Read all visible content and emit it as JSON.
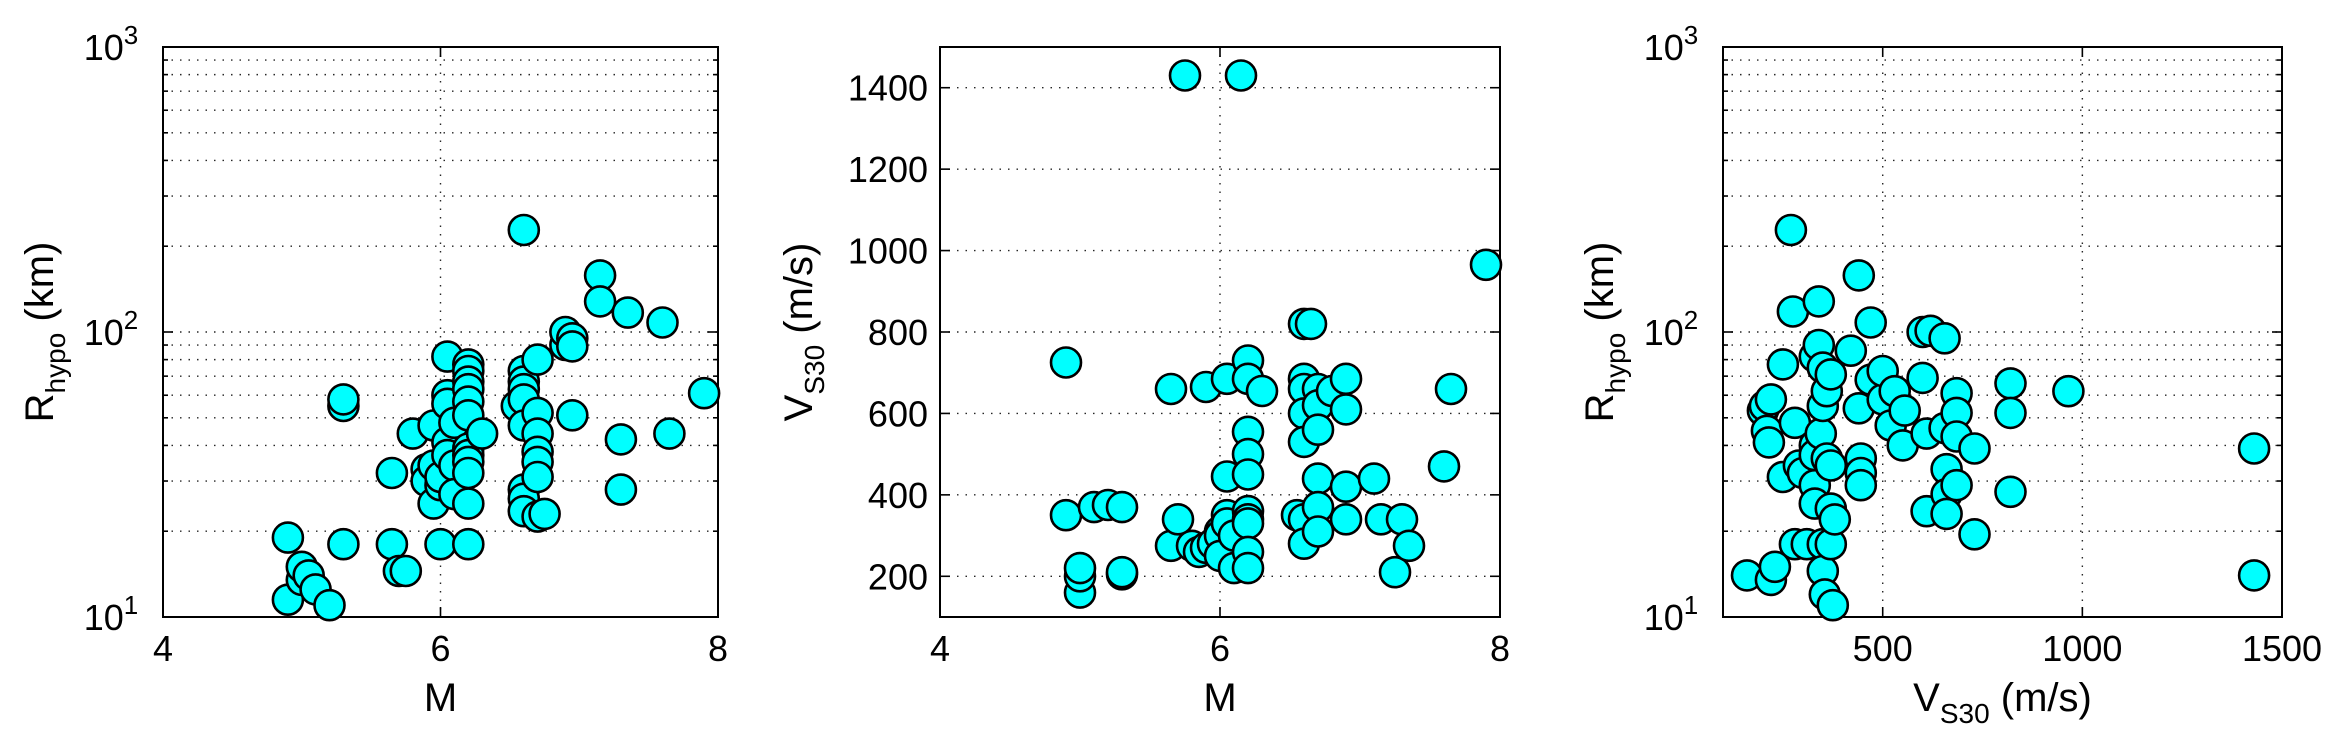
{
  "chart_data": [
    {
      "type": "scatter",
      "xlabel": "M",
      "ylabel": {
        "main": "R",
        "sub": "hypo",
        "unit": " (km)"
      },
      "xlim": [
        4,
        8
      ],
      "ylim": [
        10,
        1000
      ],
      "yscale": "log",
      "grid": true,
      "xticks": [
        4,
        6,
        8
      ],
      "yticks": [
        {
          "base": "10",
          "exp": "1"
        },
        {
          "base": "10",
          "exp": "2"
        },
        {
          "base": "10",
          "exp": "3"
        }
      ],
      "marker_color": "#00FFFF",
      "points": [
        [
          4.9,
          11.5
        ],
        [
          4.9,
          19
        ],
        [
          5.0,
          13.5
        ],
        [
          5.0,
          15
        ],
        [
          5.05,
          14
        ],
        [
          5.1,
          12.5
        ],
        [
          5.2,
          11
        ],
        [
          5.3,
          18
        ],
        [
          5.3,
          55
        ],
        [
          5.3,
          58
        ],
        [
          5.65,
          32
        ],
        [
          5.65,
          18
        ],
        [
          5.7,
          14.5
        ],
        [
          5.75,
          14.5
        ],
        [
          5.8,
          44
        ],
        [
          5.9,
          33
        ],
        [
          5.9,
          30
        ],
        [
          5.95,
          34
        ],
        [
          5.95,
          47
        ],
        [
          5.95,
          25
        ],
        [
          6.0,
          29
        ],
        [
          6.0,
          31
        ],
        [
          6.0,
          18
        ],
        [
          6.05,
          82
        ],
        [
          6.05,
          60
        ],
        [
          6.05,
          56
        ],
        [
          6.05,
          41
        ],
        [
          6.05,
          37
        ],
        [
          6.1,
          48
        ],
        [
          6.1,
          34
        ],
        [
          6.1,
          27
        ],
        [
          6.2,
          77
        ],
        [
          6.2,
          73
        ],
        [
          6.2,
          67
        ],
        [
          6.2,
          63
        ],
        [
          6.2,
          57
        ],
        [
          6.2,
          51
        ],
        [
          6.2,
          39
        ],
        [
          6.2,
          37
        ],
        [
          6.2,
          35
        ],
        [
          6.2,
          32
        ],
        [
          6.2,
          25
        ],
        [
          6.2,
          18
        ],
        [
          6.3,
          44
        ],
        [
          6.55,
          55
        ],
        [
          6.6,
          228
        ],
        [
          6.6,
          73
        ],
        [
          6.6,
          67
        ],
        [
          6.6,
          63
        ],
        [
          6.6,
          58
        ],
        [
          6.6,
          47
        ],
        [
          6.6,
          28
        ],
        [
          6.6,
          26
        ],
        [
          6.6,
          23.5
        ],
        [
          6.7,
          80
        ],
        [
          6.7,
          52
        ],
        [
          6.7,
          44
        ],
        [
          6.7,
          38
        ],
        [
          6.7,
          35
        ],
        [
          6.7,
          31
        ],
        [
          6.7,
          22.5
        ],
        [
          6.75,
          23
        ],
        [
          6.9,
          90
        ],
        [
          6.9,
          100
        ],
        [
          6.95,
          95
        ],
        [
          6.95,
          89
        ],
        [
          6.95,
          51
        ],
        [
          7.15,
          158
        ],
        [
          7.15,
          128
        ],
        [
          7.3,
          42
        ],
        [
          7.3,
          28
        ],
        [
          7.35,
          117
        ],
        [
          7.6,
          108
        ],
        [
          7.65,
          44
        ],
        [
          7.9,
          61
        ]
      ]
    },
    {
      "type": "scatter",
      "xlabel": "M",
      "ylabel": {
        "main": "V",
        "sub": "S30",
        "unit": " (m/s)"
      },
      "xlim": [
        4,
        8
      ],
      "ylim": [
        100,
        1500
      ],
      "yscale": "linear",
      "grid": true,
      "xticks": [
        4,
        6,
        8
      ],
      "yticks": [
        200,
        400,
        600,
        800,
        1000,
        1200,
        1400
      ],
      "marker_color": "#00FFFF",
      "points": [
        [
          4.9,
          350
        ],
        [
          4.9,
          725
        ],
        [
          5.0,
          160
        ],
        [
          5.0,
          200
        ],
        [
          5.0,
          220
        ],
        [
          5.1,
          370
        ],
        [
          5.2,
          375
        ],
        [
          5.3,
          370
        ],
        [
          5.3,
          205
        ],
        [
          5.3,
          210
        ],
        [
          5.65,
          660
        ],
        [
          5.65,
          275
        ],
        [
          5.7,
          340
        ],
        [
          5.75,
          1430
        ],
        [
          5.8,
          275
        ],
        [
          5.85,
          260
        ],
        [
          5.9,
          665
        ],
        [
          5.9,
          270
        ],
        [
          5.95,
          280
        ],
        [
          6.0,
          310
        ],
        [
          6.0,
          300
        ],
        [
          6.0,
          250
        ],
        [
          6.05,
          685
        ],
        [
          6.05,
          445
        ],
        [
          6.05,
          350
        ],
        [
          6.05,
          330
        ],
        [
          6.1,
          300
        ],
        [
          6.1,
          220
        ],
        [
          6.15,
          1430
        ],
        [
          6.2,
          730
        ],
        [
          6.2,
          685
        ],
        [
          6.2,
          555
        ],
        [
          6.2,
          500
        ],
        [
          6.2,
          450
        ],
        [
          6.2,
          360
        ],
        [
          6.2,
          340
        ],
        [
          6.2,
          330
        ],
        [
          6.2,
          260
        ],
        [
          6.2,
          220
        ],
        [
          6.3,
          655
        ],
        [
          6.55,
          350
        ],
        [
          6.6,
          340
        ],
        [
          6.6,
          820
        ],
        [
          6.6,
          685
        ],
        [
          6.6,
          660
        ],
        [
          6.6,
          600
        ],
        [
          6.6,
          530
        ],
        [
          6.6,
          280
        ],
        [
          6.65,
          820
        ],
        [
          6.7,
          660
        ],
        [
          6.7,
          620
        ],
        [
          6.7,
          560
        ],
        [
          6.7,
          440
        ],
        [
          6.7,
          370
        ],
        [
          6.7,
          310
        ],
        [
          6.8,
          655
        ],
        [
          6.9,
          685
        ],
        [
          6.9,
          610
        ],
        [
          6.9,
          420
        ],
        [
          6.9,
          340
        ],
        [
          7.1,
          440
        ],
        [
          7.15,
          340
        ],
        [
          7.25,
          210
        ],
        [
          7.3,
          340
        ],
        [
          7.35,
          275
        ],
        [
          7.6,
          470
        ],
        [
          7.65,
          660
        ],
        [
          7.9,
          965
        ]
      ]
    },
    {
      "type": "scatter",
      "xlabel": {
        "main": "V",
        "sub": "S30",
        "unit": " (m/s)"
      },
      "ylabel": {
        "main": "R",
        "sub": "hypo",
        "unit": " (km)"
      },
      "xlim": [
        100,
        1500
      ],
      "ylim": [
        10,
        1000
      ],
      "yscale": "log",
      "grid": true,
      "xticks": [
        500,
        1000,
        1500
      ],
      "yticks": [
        {
          "base": "10",
          "exp": "1"
        },
        {
          "base": "10",
          "exp": "2"
        },
        {
          "base": "10",
          "exp": "3"
        }
      ],
      "marker_color": "#00FFFF",
      "points": [
        [
          160,
          14
        ],
        [
          200,
          53
        ],
        [
          205,
          55
        ],
        [
          210,
          45
        ],
        [
          215,
          41
        ],
        [
          220,
          58
        ],
        [
          220,
          13.5
        ],
        [
          230,
          15
        ],
        [
          250,
          31
        ],
        [
          250,
          77
        ],
        [
          270,
          228
        ],
        [
          275,
          118
        ],
        [
          280,
          48
        ],
        [
          280,
          18
        ],
        [
          290,
          34
        ],
        [
          300,
          32
        ],
        [
          310,
          18
        ],
        [
          330,
          82
        ],
        [
          330,
          40
        ],
        [
          330,
          37
        ],
        [
          330,
          29
        ],
        [
          330,
          25
        ],
        [
          340,
          90
        ],
        [
          340,
          128
        ],
        [
          345,
          44
        ],
        [
          350,
          75
        ],
        [
          350,
          55
        ],
        [
          350,
          18
        ],
        [
          350,
          14.5
        ],
        [
          355,
          12
        ],
        [
          360,
          62
        ],
        [
          360,
          36
        ],
        [
          370,
          71
        ],
        [
          370,
          34
        ],
        [
          370,
          24
        ],
        [
          370,
          18
        ],
        [
          375,
          11
        ],
        [
          380,
          22
        ],
        [
          420,
          86
        ],
        [
          440,
          158
        ],
        [
          440,
          54
        ],
        [
          445,
          36
        ],
        [
          445,
          32
        ],
        [
          445,
          29
        ],
        [
          470,
          108
        ],
        [
          470,
          68
        ],
        [
          500,
          58
        ],
        [
          500,
          73
        ],
        [
          520,
          47
        ],
        [
          530,
          62
        ],
        [
          550,
          40
        ],
        [
          555,
          53
        ],
        [
          600,
          100
        ],
        [
          600,
          69
        ],
        [
          610,
          44
        ],
        [
          610,
          23.5
        ],
        [
          620,
          101
        ],
        [
          655,
          95
        ],
        [
          655,
          46
        ],
        [
          660,
          33
        ],
        [
          660,
          27
        ],
        [
          660,
          23
        ],
        [
          685,
          61
        ],
        [
          685,
          52
        ],
        [
          685,
          43
        ],
        [
          685,
          29
        ],
        [
          730,
          39
        ],
        [
          730,
          19.5
        ],
        [
          820,
          66
        ],
        [
          820,
          52
        ],
        [
          820,
          27.5
        ],
        [
          965,
          62
        ],
        [
          1430,
          39
        ],
        [
          1430,
          14
        ]
      ]
    }
  ]
}
